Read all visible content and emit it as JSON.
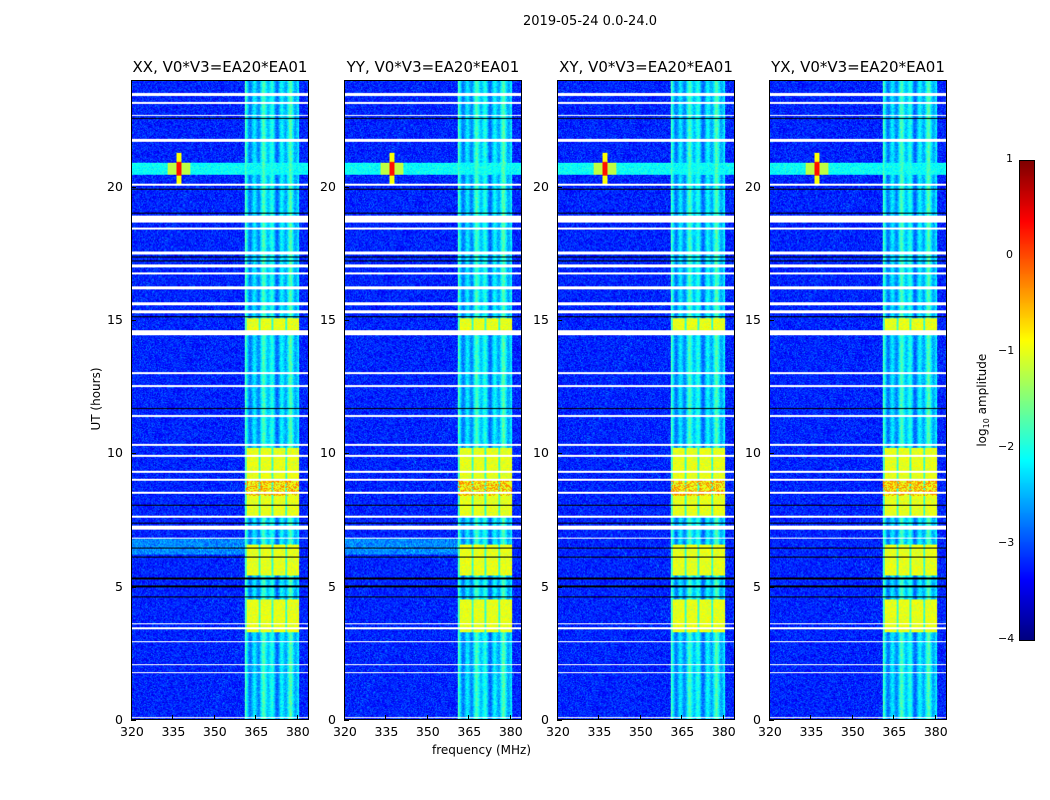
{
  "chart_data": {
    "type": "heatmap",
    "title": "2019-05-24 0.0-24.0",
    "xlabel": "frequency (MHz)",
    "ylabel": "UT (hours)",
    "xlim": [
      320,
      384.4
    ],
    "ylim": [
      0,
      24
    ],
    "xticks": [
      "320",
      "335",
      "350",
      "365",
      "380"
    ],
    "xtick_values": [
      320,
      335,
      350,
      365,
      380
    ],
    "yticks": [
      "0",
      "5",
      "10",
      "15",
      "20"
    ],
    "ytick_values": [
      0,
      5,
      10,
      15,
      20
    ],
    "panels": [
      {
        "title": "XX, V0*V3=EA20*EA01"
      },
      {
        "title": "YY, V0*V3=EA20*EA01"
      },
      {
        "title": "XY, V0*V3=EA20*EA01"
      },
      {
        "title": "YX, V0*V3=EA20*EA01"
      }
    ],
    "colorbar": {
      "label_prefix": "log",
      "label_sub": "10",
      "label_suffix": " amplitude",
      "colormap": "jet",
      "range": [
        -4,
        1
      ],
      "ticks": [
        "1",
        "0",
        "−1",
        "−2",
        "−3",
        "−4"
      ],
      "tick_values": [
        1,
        0,
        -1,
        -2,
        -3,
        -4
      ]
    },
    "features": {
      "background_level": -3.2,
      "rfi_band_mhz": [
        361,
        381
      ],
      "rfi_band_level": -2.3,
      "strong_rfi_hours": [
        [
          3.3,
          4.5
        ],
        [
          5.4,
          6.6
        ],
        [
          7.6,
          10.2
        ],
        [
          14.6,
          15.1
        ]
      ],
      "strong_rfi_level": -1.0,
      "rfi_line_hour": [
        20.5,
        20.95
      ],
      "rfi_spike_mhz": 337,
      "flagged_white_hours": [
        [
          23.45,
          23.55
        ],
        [
          23.15,
          23.22
        ],
        [
          22.7,
          22.75
        ],
        [
          21.75,
          21.85
        ],
        [
          20.1,
          20.15
        ],
        [
          18.7,
          18.95
        ],
        [
          18.45,
          18.5
        ],
        [
          17.5,
          17.6
        ],
        [
          17.0,
          17.1
        ],
        [
          16.75,
          16.82
        ],
        [
          16.2,
          16.28
        ],
        [
          15.6,
          15.68
        ],
        [
          15.3,
          15.38
        ],
        [
          14.45,
          14.65
        ],
        [
          13.0,
          13.07
        ],
        [
          12.5,
          12.57
        ],
        [
          11.4,
          11.45
        ],
        [
          10.3,
          10.37
        ],
        [
          9.9,
          9.95
        ],
        [
          9.3,
          9.36
        ],
        [
          9.0,
          9.05
        ],
        [
          8.5,
          8.55
        ],
        [
          7.6,
          7.65
        ],
        [
          7.15,
          7.3
        ],
        [
          6.8,
          6.85
        ],
        [
          3.58,
          3.63
        ],
        [
          3.4,
          3.45
        ],
        [
          2.9,
          2.95
        ],
        [
          2.05,
          2.1
        ],
        [
          1.75,
          1.8
        ],
        [
          0.05,
          0.1
        ]
      ],
      "flagged_black_hours": [
        22.6,
        19.95,
        19.05,
        17.4,
        17.25,
        15.15,
        11.7,
        8.05,
        7.4,
        6.45,
        6.1,
        5.3,
        5.0,
        4.6
      ]
    }
  }
}
